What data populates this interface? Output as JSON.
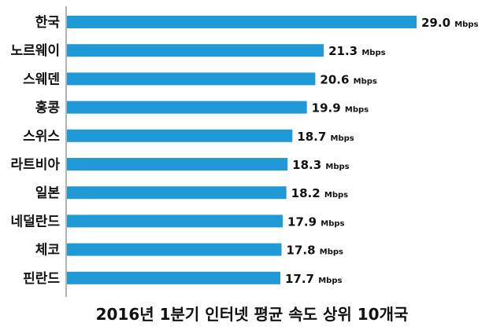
{
  "chart_data": {
    "type": "bar",
    "orientation": "horizontal",
    "title": "2016년 1분기 인터넷 평균 속도 상위 10개국",
    "categories": [
      "한국",
      "노르웨이",
      "스웨덴",
      "홍콩",
      "스위스",
      "라트비아",
      "일본",
      "네덜란드",
      "체코",
      "핀란드"
    ],
    "values": [
      29.0,
      21.3,
      20.6,
      19.9,
      18.7,
      18.3,
      18.2,
      17.9,
      17.8,
      17.7
    ],
    "value_labels": [
      "29.0",
      "21.3",
      "20.6",
      "19.9",
      "18.7",
      "18.3",
      "18.2",
      "17.9",
      "17.8",
      "17.7"
    ],
    "unit": "Mbps",
    "xlim": [
      0,
      30
    ],
    "grid": false,
    "colors": {
      "bar": "#1f9ad6",
      "axis": "#9a9a9a",
      "text": "#111111"
    }
  }
}
